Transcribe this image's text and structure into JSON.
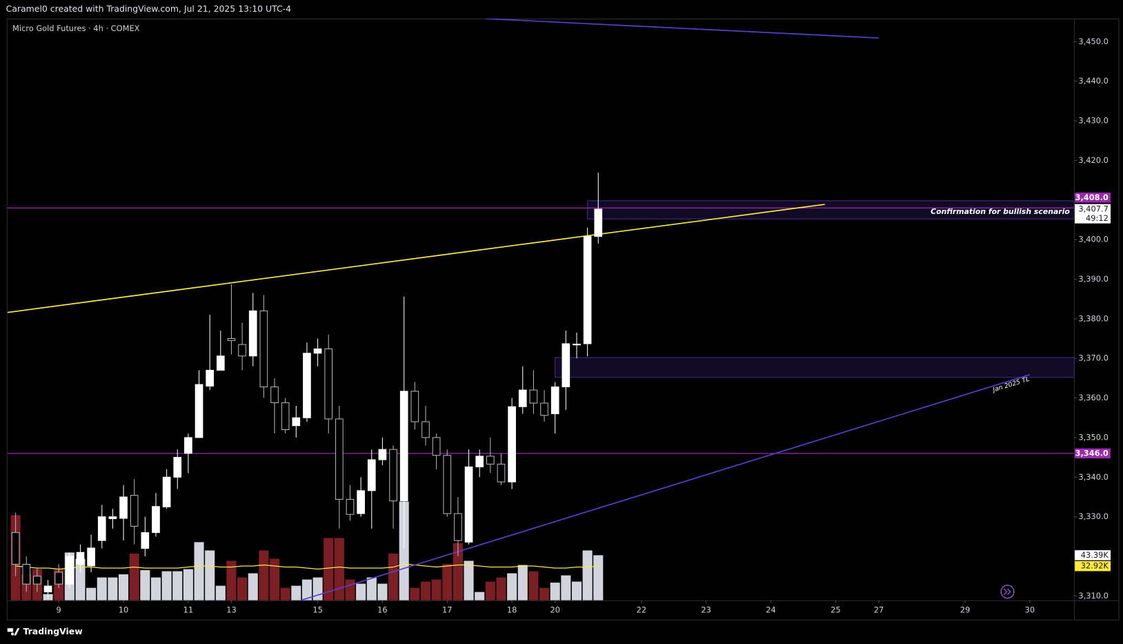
{
  "chart_data": {
    "type": "candlestick",
    "header": "Caramel0 created with TradingView.com, Jul 21, 2025 13:10 UTC-4",
    "title": "Micro Gold Futures · 4h · COMEX",
    "footer": "TradingView",
    "xlim": [
      -0.76,
      98.1
    ],
    "ylim": [
      3308.9,
      3455.8
    ],
    "grid": false,
    "bull_color": "#ffffff",
    "bear_color": "#000000",
    "bear_border": "#b2b5be",
    "xticks": [
      {
        "value": 4,
        "label": "9"
      },
      {
        "value": 10,
        "label": "10"
      },
      {
        "value": 16,
        "label": "11"
      },
      {
        "value": 20,
        "label": "13"
      },
      {
        "value": 28,
        "label": "15"
      },
      {
        "value": 34,
        "label": "16"
      },
      {
        "value": 40,
        "label": "17"
      },
      {
        "value": 46,
        "label": "18"
      },
      {
        "value": 50,
        "label": "20"
      },
      {
        "value": 58,
        "label": "22"
      },
      {
        "value": 64,
        "label": "23"
      },
      {
        "value": 70,
        "label": "24"
      },
      {
        "value": 76,
        "label": "25"
      },
      {
        "value": 80,
        "label": "27"
      },
      {
        "value": 88,
        "label": "29"
      },
      {
        "value": 94,
        "label": "30"
      }
    ],
    "yticks": [
      {
        "value": 3310,
        "label": "3,310.0"
      },
      {
        "value": 3330,
        "label": "3,330.0"
      },
      {
        "value": 3340,
        "label": "3,340.0"
      },
      {
        "value": 3350,
        "label": "3,350.0"
      },
      {
        "value": 3360,
        "label": "3,360.0"
      },
      {
        "value": 3370,
        "label": "3,370.0"
      },
      {
        "value": 3380,
        "label": "3,380.0"
      },
      {
        "value": 3390,
        "label": "3,390.0"
      },
      {
        "value": 3400,
        "label": "3,400.0"
      },
      {
        "value": 3420,
        "label": "3,420.0"
      },
      {
        "value": 3430,
        "label": "3,430.0"
      },
      {
        "value": 3440,
        "label": "3,440.0"
      },
      {
        "value": 3450,
        "label": "3,450.0"
      }
    ],
    "ohlc": {
      "open": [
        3326,
        3318,
        3315,
        3311,
        3316,
        3313,
        3318,
        3317.6,
        3324,
        3329.5,
        3329.6,
        3335.4,
        3322,
        3326,
        3332.5,
        3340,
        3346,
        3350,
        3363,
        3367,
        3375,
        3373.5,
        3370.6,
        3382,
        3362.8,
        3358.8,
        3353,
        3355,
        3371.3,
        3372.4,
        3354.7,
        3334.4,
        3330.8,
        3336.6,
        3344.4,
        3347,
        3334,
        3361.7,
        3354,
        3350,
        3345.5,
        3330.8,
        3323.6,
        3342.6,
        3345.3,
        3343.3,
        3338.8,
        3357.8,
        3362,
        3358.7,
        3356,
        3362.8,
        3373.4,
        3373.7,
        3400.8
      ],
      "high": [
        3331,
        3320,
        3317,
        3314,
        3318,
        3321,
        3323,
        3325.5,
        3333,
        3332,
        3338,
        3339.5,
        3330,
        3336,
        3342,
        3347,
        3351,
        3367,
        3381,
        3377,
        3388.7,
        3379,
        3386.5,
        3386,
        3365,
        3360,
        3358,
        3374,
        3375,
        3376,
        3358,
        3338,
        3340,
        3347,
        3350,
        3348,
        3385.6,
        3364,
        3358,
        3351,
        3347,
        3335,
        3347,
        3347,
        3350,
        3346,
        3360,
        3368,
        3367,
        3362,
        3364,
        3377,
        3376.5,
        3403,
        3416.9
      ],
      "low": [
        3315,
        3311,
        3311,
        3309.5,
        3312,
        3312,
        3316,
        3316,
        3322,
        3327,
        3324,
        3323,
        3320,
        3325,
        3332,
        3337,
        3341,
        3350,
        3362,
        3367,
        3371,
        3367,
        3368,
        3360,
        3351,
        3351,
        3350,
        3354,
        3368,
        3351,
        3327,
        3329,
        3330,
        3327,
        3343,
        3327,
        3322,
        3352,
        3348,
        3342,
        3330,
        3320,
        3323,
        3340,
        3341,
        3338,
        3337,
        3356,
        3356,
        3354,
        3351,
        3357,
        3370,
        3370.5,
        3399
      ],
      "close": [
        3318,
        3313,
        3313,
        3312.5,
        3313,
        3320,
        3321,
        3322.1,
        3330,
        3330,
        3335,
        3327.6,
        3326,
        3332.6,
        3340,
        3345,
        3350,
        3363.4,
        3367,
        3370.6,
        3374.5,
        3370.6,
        3382,
        3362.8,
        3358.8,
        3352,
        3355,
        3371.3,
        3372.4,
        3354.7,
        3334.4,
        3330.6,
        3336.6,
        3344.4,
        3347,
        3334,
        3361.7,
        3354,
        3350,
        3345.5,
        3330.8,
        3324,
        3342.6,
        3345.3,
        3343.3,
        3338.8,
        3357.8,
        3362,
        3358.7,
        3355.6,
        3362.8,
        3373.7,
        3373.6,
        3400.8,
        3407.7
      ]
    },
    "volume": {
      "bull_color": "#d1d4dc",
      "bear_color": "#7b1f25",
      "ylim": [
        0,
        120
      ],
      "values": [
        82,
        25,
        30,
        6,
        30,
        46,
        40,
        12,
        22,
        22,
        25,
        45,
        29,
        22,
        28,
        28,
        30,
        56,
        48,
        14,
        38,
        22,
        26,
        48,
        40,
        12,
        14,
        20,
        22,
        60,
        60,
        20,
        16,
        22,
        16,
        45,
        95,
        12,
        18,
        20,
        35,
        55,
        38,
        8,
        18,
        22,
        26,
        34,
        28,
        12,
        17,
        24,
        18,
        48,
        43.39
      ],
      "last_label": "43.39K"
    },
    "volume_ma": {
      "color": "#ffeb3b",
      "values": [
        33,
        32,
        31,
        31,
        30,
        31,
        32,
        32,
        31,
        31,
        31,
        32,
        31,
        31,
        31,
        31,
        32,
        33,
        33,
        32,
        32,
        33,
        33,
        34,
        33,
        32,
        32,
        31,
        30,
        31,
        32,
        31,
        31,
        31,
        31,
        32,
        35,
        34,
        33,
        32,
        33,
        34,
        34,
        33,
        32,
        32,
        32,
        33,
        33,
        32,
        31,
        31,
        32,
        32,
        32.92
      ],
      "last_label": "32.92K"
    },
    "last_price": {
      "value": 3407.7,
      "label": "3,407.7",
      "countdown": "49:12"
    },
    "hlines": [
      {
        "value": 3408,
        "label": "3,408.0",
        "color": "#9c27b0"
      },
      {
        "value": 3346,
        "label": "3,346.0",
        "color": "#9c27b0"
      }
    ],
    "zones": [
      {
        "from": 3405.2,
        "to": 3409.8,
        "start": 53,
        "text": "Confirmation for bullish scenario"
      },
      {
        "from": 3365.2,
        "to": 3370.2,
        "start": 50
      }
    ],
    "trendlines": [
      {
        "points": [
          [
            -0.76,
            3381.6
          ],
          [
            75,
            3408.9
          ]
        ],
        "color": "#ffeb3b"
      },
      {
        "points": [
          [
            43.55,
            3455.8
          ],
          [
            80,
            3450.9
          ]
        ],
        "color": "#5b3fd1"
      },
      {
        "points": [
          [
            26.44,
            3308.9
          ],
          [
            94,
            3365.9
          ]
        ],
        "color": "#5b3fd1",
        "label": "Jan 2025 TL"
      }
    ]
  }
}
